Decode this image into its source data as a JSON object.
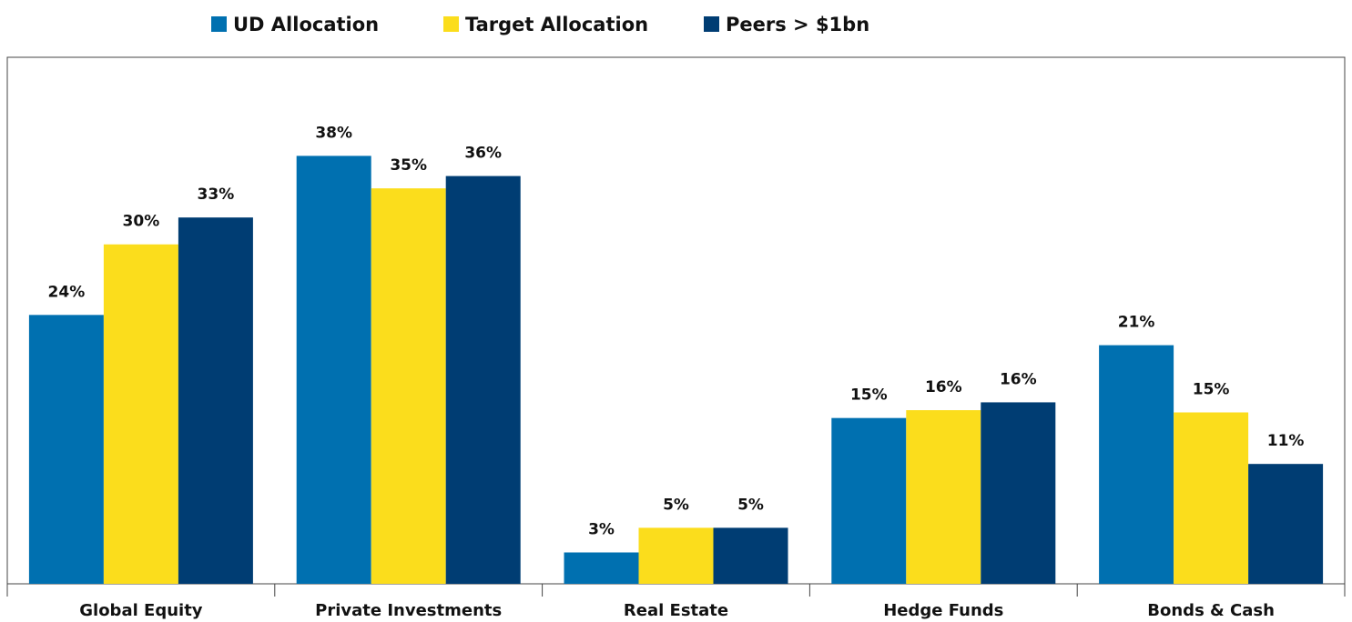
{
  "chart_data": {
    "type": "bar",
    "categories": [
      "Global Equity",
      "Private Investments",
      "Real Estate",
      "Hedge Funds",
      "Bonds & Cash"
    ],
    "series": [
      {
        "name": "UD Allocation",
        "color": "#0070b0",
        "values": [
          24.0,
          38.2,
          2.8,
          14.8,
          21.3
        ],
        "value_labels": [
          "24%",
          "38%",
          "3%",
          "15%",
          "21%"
        ]
      },
      {
        "name": "Target Allocation",
        "color": "#fbdd1c",
        "values": [
          30.3,
          35.3,
          5.0,
          15.5,
          15.3
        ],
        "value_labels": [
          "30%",
          "35%",
          "5%",
          "16%",
          "15%"
        ]
      },
      {
        "name": "Peers > $1bn",
        "color": "#003d73",
        "values": [
          32.7,
          36.4,
          5.0,
          16.2,
          10.7
        ],
        "value_labels": [
          "33%",
          "36%",
          "5%",
          "16%",
          "11%"
        ]
      }
    ],
    "ylim": [
      0,
      47
    ],
    "legend": "top"
  }
}
